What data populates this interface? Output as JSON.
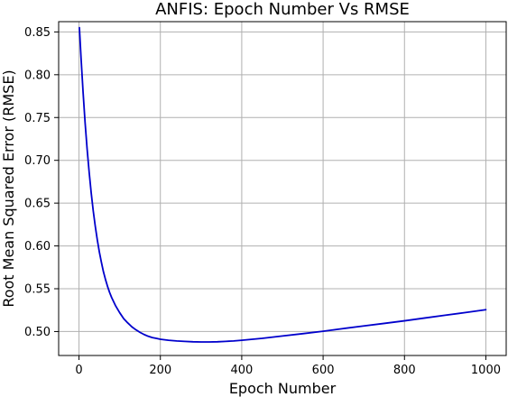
{
  "chart_data": {
    "type": "line",
    "title": "ANFIS: Epoch Number Vs RMSE",
    "xlabel": "Epoch Number",
    "ylabel": "Root Mean Squared Error (RMSE)",
    "xlim": [
      -50,
      1050
    ],
    "ylim": [
      0.472,
      0.862
    ],
    "xticks": [
      0,
      200,
      400,
      600,
      800,
      1000
    ],
    "xtick_labels": [
      "0",
      "200",
      "400",
      "600",
      "800",
      "1000"
    ],
    "yticks": [
      0.5,
      0.55,
      0.6,
      0.65,
      0.7,
      0.75,
      0.8,
      0.85
    ],
    "ytick_labels": [
      "0.50",
      "0.55",
      "0.60",
      "0.65",
      "0.70",
      "0.75",
      "0.80",
      "0.85"
    ],
    "grid": true,
    "legend": false,
    "series": [
      {
        "color": "#0000cc",
        "x": [
          1,
          5,
          10,
          15,
          20,
          25,
          30,
          35,
          40,
          45,
          50,
          55,
          60,
          65,
          70,
          75,
          80,
          90,
          100,
          110,
          120,
          130,
          140,
          150,
          160,
          170,
          180,
          190,
          200,
          220,
          240,
          260,
          280,
          300,
          320,
          340,
          360,
          380,
          400,
          450,
          500,
          550,
          600,
          650,
          700,
          750,
          800,
          850,
          900,
          950,
          1000
        ],
        "y": [
          0.855,
          0.82,
          0.78,
          0.744,
          0.713,
          0.686,
          0.662,
          0.641,
          0.623,
          0.607,
          0.593,
          0.581,
          0.57,
          0.561,
          0.553,
          0.546,
          0.54,
          0.53,
          0.522,
          0.515,
          0.51,
          0.5055,
          0.502,
          0.499,
          0.4965,
          0.4945,
          0.493,
          0.492,
          0.491,
          0.4898,
          0.489,
          0.4885,
          0.488,
          0.4878,
          0.4878,
          0.488,
          0.4885,
          0.489,
          0.4898,
          0.492,
          0.4948,
          0.4975,
          0.5003,
          0.5035,
          0.5065,
          0.5095,
          0.5125,
          0.5158,
          0.519,
          0.5222,
          0.5255
        ]
      }
    ]
  }
}
